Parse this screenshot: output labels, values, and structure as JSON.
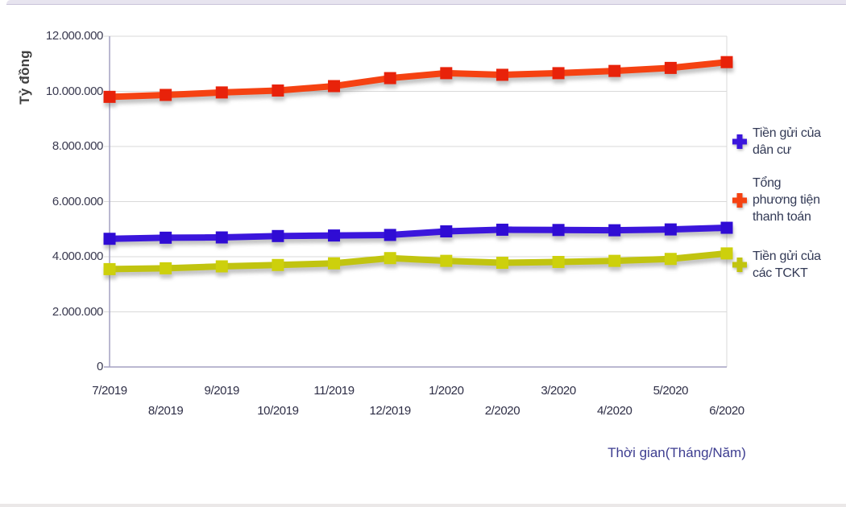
{
  "page": {
    "top_strip_color": "#e7e4ef",
    "bottom_strip_color": "#ebe8e8",
    "background": "#ffffff"
  },
  "chart_data": {
    "type": "line",
    "title": "",
    "ylabel": "Tỷ đồng",
    "xlabel": "Thời gian(Tháng/Năm)",
    "x": [
      "7/2019",
      "8/2019",
      "9/2019",
      "10/2019",
      "11/2019",
      "12/2019",
      "1/2020",
      "2/2020",
      "3/2020",
      "4/2020",
      "5/2020",
      "6/2020"
    ],
    "ylim": [
      0,
      12000000
    ],
    "ytick_step": 2000000,
    "ytick_labels": [
      "0",
      "2.000.000",
      "4.000.000",
      "6.000.000",
      "8.000.000",
      "10.000.000",
      "12.000.000"
    ],
    "grid": true,
    "legend_position": "right",
    "marker": "square",
    "series": [
      {
        "name": "Tiền gửi của dân cư",
        "label_lines": [
          "Tiền gửi của",
          "dân cư"
        ],
        "color": "#3b16dc",
        "marker_color": "#2f0cd4",
        "values": [
          4650000,
          4690000,
          4700000,
          4750000,
          4770000,
          4790000,
          4920000,
          4980000,
          4970000,
          4960000,
          4990000,
          5050000
        ]
      },
      {
        "name": "Tổng phương tiện thanh toán",
        "label_lines": [
          "Tổng",
          "phương tiện",
          "thanh toán"
        ],
        "color": "#f54212",
        "marker_color": "#e8220a",
        "values": [
          9800000,
          9870000,
          9960000,
          10030000,
          10190000,
          10480000,
          10660000,
          10600000,
          10660000,
          10740000,
          10850000,
          11060000
        ]
      },
      {
        "name": "Tiền gửi của các TCKT",
        "label_lines": [
          "Tiền gửi của",
          "các TCKT"
        ],
        "color": "#c1c410",
        "marker_color": "#cdd00c",
        "values": [
          3550000,
          3580000,
          3650000,
          3700000,
          3760000,
          3950000,
          3850000,
          3780000,
          3810000,
          3850000,
          3920000,
          4120000
        ]
      }
    ]
  }
}
